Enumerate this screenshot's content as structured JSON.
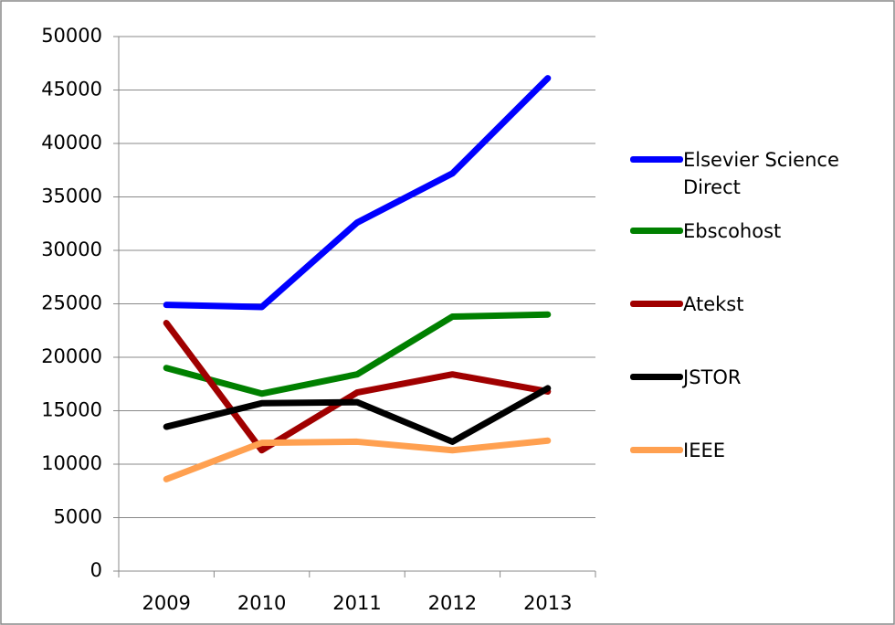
{
  "chart_data": {
    "type": "line",
    "categories": [
      "2009",
      "2010",
      "2011",
      "2012",
      "2013"
    ],
    "series": [
      {
        "name": "Elsevier Science Direct",
        "color": "#0000ff",
        "values": [
          24900,
          24700,
          32600,
          37200,
          46100
        ]
      },
      {
        "name": "Ebscohost",
        "color": "#008000",
        "values": [
          19000,
          16600,
          18400,
          23800,
          24000
        ]
      },
      {
        "name": "Atekst",
        "color": "#a00000",
        "values": [
          23200,
          11300,
          16700,
          18400,
          16800
        ]
      },
      {
        "name": "JSTOR",
        "color": "#000000",
        "values": [
          13500,
          15700,
          15800,
          12100,
          17100
        ]
      },
      {
        "name": "IEEE",
        "color": "#ffa050",
        "values": [
          8600,
          12000,
          12100,
          11300,
          12200
        ]
      }
    ],
    "ylim": [
      0,
      50000
    ],
    "yticks": [
      0,
      5000,
      10000,
      15000,
      20000,
      25000,
      30000,
      35000,
      40000,
      45000,
      50000
    ],
    "grid": true,
    "legend": "right"
  }
}
